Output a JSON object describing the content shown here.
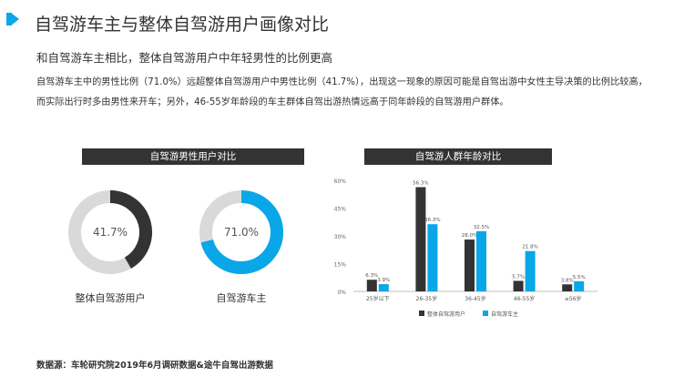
{
  "header": {
    "title": "自驾游车主与整体自驾游用户画像对比",
    "accent_color": "#0aa7e8"
  },
  "subtitle": "和自驾游车主相比，整体自驾游用户中年轻男性的比例更高",
  "paragraph": "自驾游车主中的男性比例（71.0%）远超整体自驾游用户中男性比例（41.7%），出现这一现象的原因可能是自驾出游中女性主导决策的比例比较高，而实际出行时多由男性来开车；另外，46-55岁年龄段的车主群体自驾出游热情远高于同年龄段的自驾游用户群体。",
  "source": "数据源：车轮研究院2019年6月调研数据&途牛自驾出游数据",
  "chart_data": [
    {
      "type": "pie",
      "title": "自驾游男性用户对比",
      "donuts": [
        {
          "label": "整体自驾游用户",
          "value": 41.7,
          "display": "41.7%",
          "color": "#333333",
          "rest_color": "#d9d9d9"
        },
        {
          "label": "自驾游车主",
          "value": 71.0,
          "display": "71.0%",
          "color": "#0aa7e8",
          "rest_color": "#d9d9d9"
        }
      ]
    },
    {
      "type": "bar",
      "title": "自驾游人群年龄对比",
      "categories": [
        "25岁以下",
        "26-35岁",
        "36-45岁",
        "46-55岁",
        "≥56岁"
      ],
      "ylim": [
        0,
        60
      ],
      "yticks": [
        "0%",
        "15%",
        "30%",
        "45%",
        "60%"
      ],
      "ytick_values": [
        0,
        15,
        30,
        45,
        60
      ],
      "series": [
        {
          "name": "整体自驾游用户",
          "color": "#333333",
          "values": [
            6.3,
            56.3,
            28.0,
            5.7,
            3.8
          ],
          "labels": [
            "6.3%",
            "56.3%",
            "28.0%",
            "5.7%",
            "3.8%"
          ]
        },
        {
          "name": "自驾游车主",
          "color": "#0aa7e8",
          "values": [
            3.9,
            36.3,
            32.5,
            21.8,
            5.5
          ],
          "labels": [
            "3.9%",
            "36.3%",
            "32.5%",
            "21.8%",
            "5.5%"
          ]
        }
      ],
      "legend_position": "bottom"
    }
  ]
}
